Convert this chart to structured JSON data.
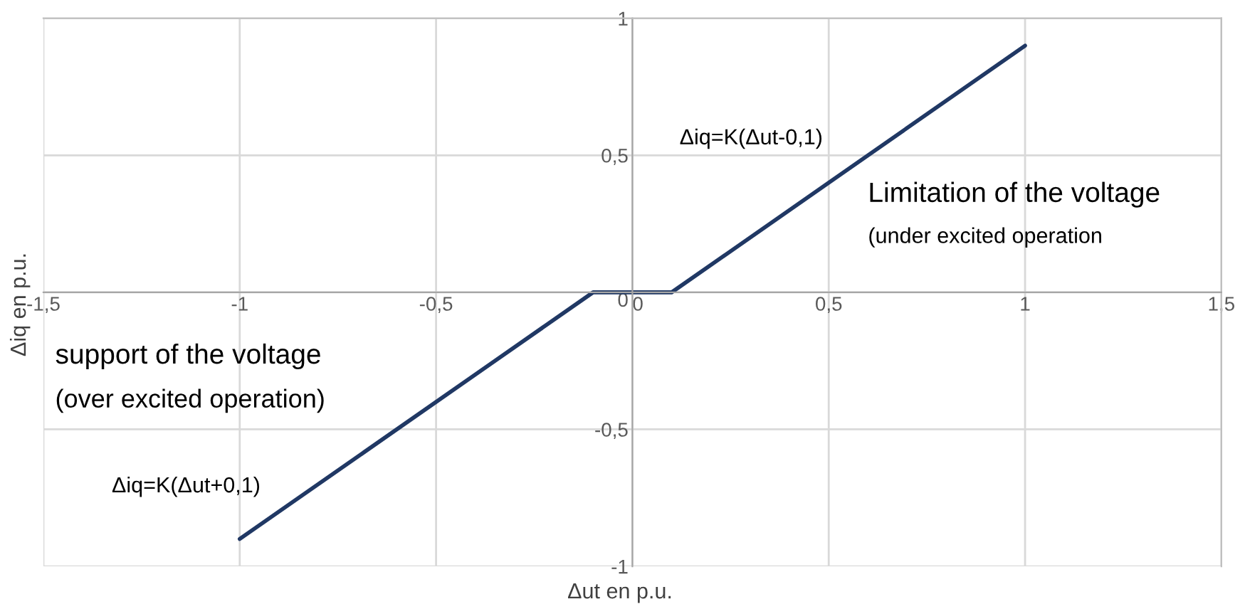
{
  "chart_data": {
    "type": "line",
    "xlabel": "Δut en p.u.",
    "ylabel": "Δiq en p.u.",
    "x": [
      -1,
      -0.1,
      0.1,
      1
    ],
    "series": [
      {
        "color": "#203864",
        "values": [
          -0.9,
          0,
          0,
          0.9
        ]
      }
    ],
    "xlim": [
      -1.5,
      1.5
    ],
    "ylim": [
      -1,
      1
    ],
    "xticks": [
      {
        "value": -1.5,
        "label": "-1,5"
      },
      -1,
      {
        "value": -0.5,
        "label": "-0,5"
      },
      0,
      {
        "value": 0.5,
        "label": "0,5"
      },
      1,
      {
        "value": 1.5,
        "label": "1,5"
      }
    ],
    "yticks": [
      -1,
      {
        "value": -0.5,
        "label": "-0,5"
      },
      0,
      {
        "value": 0.5,
        "label": "0,5"
      },
      1
    ],
    "grid": true,
    "marker": "none",
    "line_style": "solid",
    "annotations": [
      "Δiq=K(Δut-0,1)",
      "Limitation of the voltage",
      "(under excited operation",
      "support of the voltage",
      "(over excited operation)",
      "Δiq=K(Δut+0,1)"
    ]
  }
}
